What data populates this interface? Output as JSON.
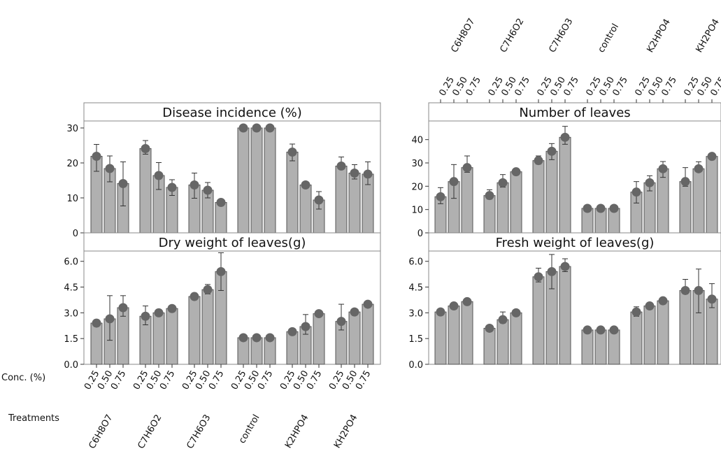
{
  "axis_labels": {
    "conc": "Conc. (%)",
    "treatments": "Treatments"
  },
  "chart_data": [
    {
      "type": "bar",
      "title": "Disease incidence (%)",
      "ylim": [
        0,
        32
      ],
      "yticks": [
        0,
        10,
        20,
        30
      ],
      "ytick_labels": [
        "0",
        "10",
        "20",
        "30"
      ],
      "groups": [
        "C6H8O7",
        "C7H6O2",
        "C7H6O3",
        "control",
        "K2HPO4",
        "KH2PO4"
      ],
      "group_labels": [
        "C6H8O7",
        "C7H6O2",
        "C7H6O3",
        "control",
        "K2HPO4",
        "KH2PO4"
      ],
      "levels": [
        "0.25",
        "0.50",
        "0.75"
      ],
      "values": [
        [
          21.9,
          18.4,
          14.1
        ],
        [
          24.1,
          16.4,
          13.0
        ],
        [
          13.7,
          12.2,
          8.7
        ],
        [
          30,
          30,
          30
        ],
        [
          23.1,
          13.7,
          9.4
        ],
        [
          19.1,
          17.1,
          16.8
        ]
      ],
      "err_low": [
        [
          17.6,
          14.6,
          7.7
        ],
        [
          22.5,
          12.4,
          10.7
        ],
        [
          9.9,
          10.0,
          7.8
        ],
        [
          30,
          30,
          30
        ],
        [
          20.6,
          13.0,
          6.8
        ],
        [
          18.2,
          15.4,
          13.8
        ]
      ],
      "err_high": [
        [
          25.3,
          22.0,
          20.3
        ],
        [
          26.4,
          20.1,
          15.2
        ],
        [
          17.1,
          14.4,
          9.5
        ],
        [
          30,
          30,
          30
        ],
        [
          25.4,
          14.4,
          11.8
        ],
        [
          21.7,
          19.5,
          20.3
        ]
      ],
      "xlabel": "",
      "ylabel": "",
      "grid": false
    },
    {
      "type": "bar",
      "title": "Dry weight of leaves(g)",
      "ylim": [
        0,
        6.6
      ],
      "yticks": [
        0,
        1.5,
        3.0,
        4.5,
        6.0
      ],
      "ytick_labels": [
        "0.0",
        "1.5",
        "3.0",
        "4.5",
        "6.0"
      ],
      "groups": [
        "C6H8O7",
        "C7H6O2",
        "C7H6O3",
        "control",
        "K2HPO4",
        "KH2PO4"
      ],
      "group_labels": [
        "C6H8O7",
        "C7H6O2",
        "C7H6O3",
        "control",
        "K2HPO4",
        "KH2PO4"
      ],
      "levels": [
        "0.25",
        "0.50",
        "0.75"
      ],
      "values": [
        [
          2.4,
          2.65,
          3.3
        ],
        [
          2.8,
          3.0,
          3.25
        ],
        [
          3.95,
          4.35,
          5.4
        ],
        [
          1.55,
          1.55,
          1.55
        ],
        [
          1.9,
          2.2,
          2.95
        ],
        [
          2.5,
          3.05,
          3.5
        ]
      ],
      "err_low": [
        [
          2.2,
          1.4,
          2.8
        ],
        [
          2.3,
          2.85,
          3.15
        ],
        [
          3.85,
          4.1,
          4.3
        ],
        [
          1.45,
          1.5,
          1.5
        ],
        [
          1.75,
          1.75,
          2.85
        ],
        [
          2.0,
          2.95,
          3.35
        ]
      ],
      "err_high": [
        [
          2.6,
          4.0,
          4.0
        ],
        [
          3.4,
          3.2,
          3.35
        ],
        [
          4.15,
          4.65,
          6.5
        ],
        [
          1.65,
          1.6,
          1.6
        ],
        [
          2.05,
          2.9,
          3.05
        ],
        [
          3.5,
          3.15,
          3.6
        ]
      ],
      "xlabel": "Conc. (%)",
      "ylabel": "",
      "grid": false
    },
    {
      "type": "bar",
      "title": "Number of leaves",
      "ylim": [
        0,
        48
      ],
      "yticks": [
        0,
        10,
        20,
        30,
        40
      ],
      "ytick_labels": [
        "0",
        "10",
        "20",
        "30",
        "40"
      ],
      "groups": [
        "C6H8O7",
        "C7H6O2",
        "C7H6O3",
        "control",
        "K2HPO4",
        "KH2PO4"
      ],
      "group_labels": [
        "C6H8O7",
        "C7H6O2",
        "C7H6O3",
        "control",
        "K2HPO4",
        "KH2PO4"
      ],
      "levels": [
        "0.25",
        "0.50",
        "0.75"
      ],
      "values": [
        [
          15.5,
          22.0,
          28.0
        ],
        [
          16.0,
          21.5,
          26.2
        ],
        [
          31.0,
          35.0,
          41.0
        ],
        [
          10.5,
          10.5,
          10.5
        ],
        [
          17.5,
          21.5,
          27.5
        ],
        [
          22.0,
          27.5,
          32.8
        ]
      ],
      "err_low": [
        [
          12.5,
          14.8,
          26.0
        ],
        [
          14.5,
          19.6,
          25.0
        ],
        [
          29.5,
          31.4,
          38.0
        ],
        [
          10.0,
          10.0,
          10.0
        ],
        [
          12.8,
          18.0,
          23.8
        ],
        [
          20.0,
          26.4,
          32.0
        ]
      ],
      "err_high": [
        [
          19.4,
          29.3,
          33.0
        ],
        [
          18.5,
          25.0,
          27.5
        ],
        [
          33.0,
          38.3,
          45.7
        ],
        [
          11.0,
          11.0,
          11.0
        ],
        [
          22.0,
          24.5,
          30.6
        ],
        [
          28.0,
          30.5,
          33.8
        ]
      ],
      "xlabel": "",
      "ylabel": "",
      "grid": false
    },
    {
      "type": "bar",
      "title": "Fresh weight of leaves(g)",
      "ylim": [
        0,
        6.6
      ],
      "yticks": [
        0,
        1.5,
        3.0,
        4.5,
        6.0
      ],
      "ytick_labels": [
        "0.0",
        "1.5",
        "3.0",
        "4.5",
        "6.0"
      ],
      "groups": [
        "C6H8O7",
        "C7H6O2",
        "C7H6O3",
        "control",
        "K2HPO4",
        "KH2PO4"
      ],
      "group_labels": [
        "C6H8O7",
        "C7H6O2",
        "C7H6O3",
        "control",
        "K2HPO4",
        "KH2PO4"
      ],
      "levels": [
        "0.25",
        "0.50",
        "0.75"
      ],
      "values": [
        [
          3.05,
          3.4,
          3.65
        ],
        [
          2.1,
          2.6,
          3.0
        ],
        [
          5.1,
          5.4,
          5.7
        ],
        [
          2.0,
          2.0,
          2.0
        ],
        [
          3.05,
          3.4,
          3.7
        ],
        [
          4.3,
          4.3,
          3.8
        ]
      ],
      "err_low": [
        [
          2.9,
          3.3,
          3.5
        ],
        [
          1.95,
          2.4,
          2.9
        ],
        [
          4.8,
          4.4,
          5.4
        ],
        [
          1.95,
          1.95,
          1.95
        ],
        [
          2.8,
          3.3,
          3.55
        ],
        [
          4.1,
          3.0,
          3.3
        ]
      ],
      "err_high": [
        [
          3.2,
          3.5,
          3.8
        ],
        [
          2.25,
          3.05,
          3.15
        ],
        [
          5.6,
          6.4,
          6.15
        ],
        [
          2.05,
          2.05,
          2.05
        ],
        [
          3.35,
          3.5,
          3.85
        ],
        [
          4.95,
          5.55,
          4.7
        ]
      ],
      "xlabel": "",
      "ylabel": "",
      "grid": false
    }
  ]
}
